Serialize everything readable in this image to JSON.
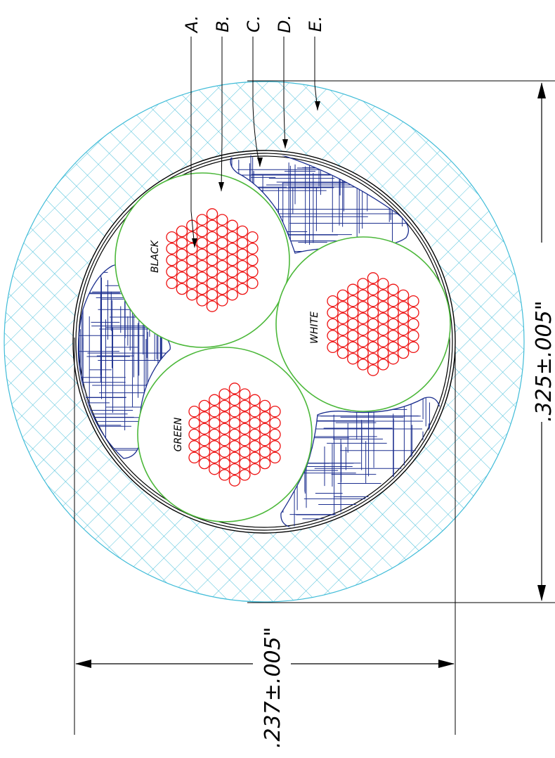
{
  "callouts": [
    {
      "letter": "A."
    },
    {
      "letter": "B."
    },
    {
      "letter": "C."
    },
    {
      "letter": "D."
    },
    {
      "letter": "E."
    }
  ],
  "conductors": [
    {
      "label": "BLACK"
    },
    {
      "label": "WHITE"
    },
    {
      "label": "GREEN"
    }
  ],
  "dimensions": {
    "outer_diameter": ".325±.005\"",
    "inner_diameter": ".237±.005\""
  },
  "colors": {
    "jacket_hatch": "#40bcd8",
    "filler_hatch": "#1c2f8f",
    "insulation": "#4cb83a",
    "strand": "#ee1111",
    "outline": "#000000"
  }
}
